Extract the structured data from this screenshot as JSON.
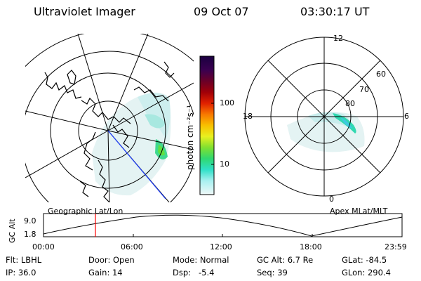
{
  "header": {
    "title": "Ultraviolet Imager",
    "date": "09 Oct 07",
    "time": "03:30:17 UT"
  },
  "colorbar": {
    "unit_label": "photon cm⁻²s⁻¹",
    "ticks": [
      "100",
      "10"
    ],
    "scale": "log",
    "colors": [
      "#2a0050",
      "#5a0030",
      "#8b0000",
      "#c00010",
      "#e83000",
      "#f88000",
      "#f8c000",
      "#e8f020",
      "#90e030",
      "#30d880",
      "#30e0c0",
      "#d8f4f4"
    ]
  },
  "left_map": {
    "label": "Geographic Lat/Lon"
  },
  "right_map": {
    "label": "Apex MLat/MLT",
    "mlt_labels": {
      "top": "12",
      "left": "18",
      "right": "6",
      "bottom": "0"
    },
    "lat_labels": [
      "60",
      "70",
      "80"
    ]
  },
  "timeline": {
    "ylabel": "GC Alt",
    "y_ticks": [
      "9.0",
      "1.8"
    ],
    "x_ticks": [
      "00:00",
      "06:00",
      "12:00",
      "18:00",
      "23:59"
    ],
    "marker_time": "03:30"
  },
  "info": {
    "flt": "Flt: LBHL",
    "door": "Door: Open",
    "mode": "Mode: Normal",
    "gc_alt": "GC Alt: 6.7 Re",
    "glat": "GLat: -84.5",
    "ip": "IP: 36.0",
    "gain": "Gain: 14",
    "dsp": "Dsp:   -5.4",
    "seq": "Seq: 39",
    "glon": "GLon: 290.4"
  }
}
